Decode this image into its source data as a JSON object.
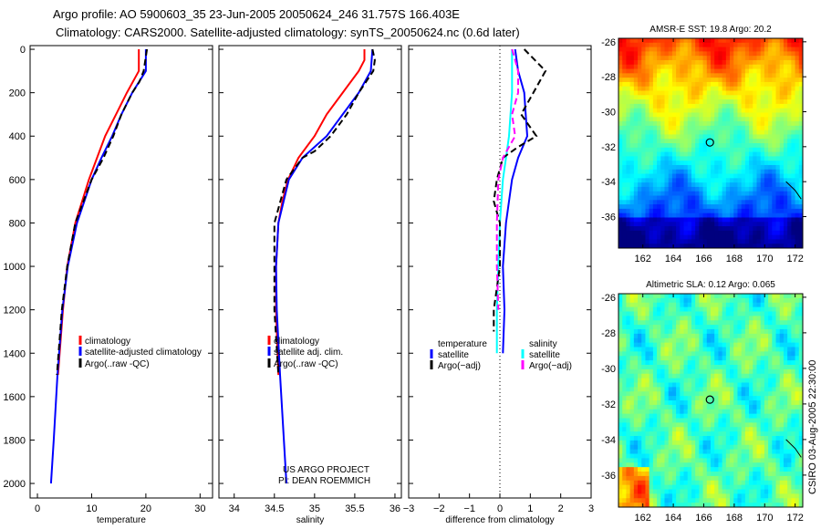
{
  "title_line1": "Argo profile: AO 5900603_35 23-Jun-2005 20050624_246 31.757S 166.403E",
  "title_line2": "Climatology: CARS2000. Satellite-adjusted climatology: synTS_20050624.nc (0.6d later)",
  "credit": "CSIRO 03-Aug-2005 22:30:00",
  "project_line1": "US ARGO PROJECT",
  "project_line2": "PI: DEAN ROEMMICH",
  "colors": {
    "red": "#ff0000",
    "blue": "#0000ff",
    "black": "#000000",
    "cyan": "#00ffff",
    "magenta": "#ff00ff"
  },
  "chart_data": [
    {
      "type": "line",
      "id": "temp",
      "xlabel": "temperature",
      "ylabel": "",
      "xlim": [
        -1.35,
        32.3
      ],
      "ylim": [
        2067,
        -17
      ],
      "xticks": [
        0,
        10,
        20,
        30
      ],
      "yticks": [
        0,
        200,
        400,
        600,
        800,
        1000,
        1200,
        1400,
        1600,
        1800,
        2000
      ],
      "legend": [
        "climatology",
        "satellite-adjusted climatology",
        "Argo(..raw -QC)"
      ],
      "series": [
        {
          "name": "climatology",
          "color": "red",
          "dash": false,
          "depth": [
            0,
            100,
            200,
            300,
            400,
            500,
            600,
            800,
            1000,
            1200,
            1500
          ],
          "value": [
            18.7,
            18.7,
            16.5,
            14.5,
            12.5,
            11,
            9.5,
            7,
            5.5,
            4.7,
            3.8
          ]
        },
        {
          "name": "satellite-adjusted climatology",
          "color": "blue",
          "dash": false,
          "depth": [
            0,
            100,
            200,
            300,
            400,
            500,
            600,
            800,
            1000,
            1200,
            1500,
            1800,
            2000
          ],
          "value": [
            20,
            20,
            17.5,
            15.5,
            13.8,
            11.8,
            10,
            7.3,
            5.6,
            4.6,
            3.7,
            3,
            2.5
          ]
        },
        {
          "name": "Argo(..raw -QC)",
          "color": "black",
          "dash": true,
          "depth": [
            0,
            100,
            150,
            200,
            300,
            400,
            500,
            600,
            700,
            800,
            1000,
            1200,
            1500
          ],
          "value": [
            20.2,
            19.6,
            18.8,
            17.5,
            15.5,
            14,
            12.2,
            10,
            8.5,
            7,
            5.5,
            4.5,
            3.6
          ]
        }
      ]
    },
    {
      "type": "line",
      "id": "sal",
      "xlabel": "salinity",
      "xlim": [
        33.81,
        36.08
      ],
      "ylim": [
        2067,
        -17
      ],
      "xticks": [
        34,
        34.5,
        35,
        35.5,
        36
      ],
      "xticklabels": [
        "34",
        "34.5",
        "35",
        "35.5",
        "36"
      ],
      "legend": [
        "climatology",
        "satellite adj. clim.",
        "Argo(..raw -QC)"
      ],
      "series": [
        {
          "name": "climatology",
          "color": "red",
          "dash": false,
          "depth": [
            0,
            50,
            100,
            200,
            300,
            400,
            500,
            600,
            700,
            800,
            1000,
            1200,
            1500
          ],
          "value": [
            35.62,
            35.62,
            35.55,
            35.35,
            35.15,
            35.0,
            34.8,
            34.67,
            34.6,
            34.55,
            34.52,
            34.52,
            34.55
          ]
        },
        {
          "name": "satellite adj. clim.",
          "color": "blue",
          "dash": false,
          "depth": [
            0,
            100,
            200,
            300,
            400,
            500,
            600,
            800,
            1000,
            1200,
            1500,
            2000
          ],
          "value": [
            35.72,
            35.7,
            35.55,
            35.35,
            35.15,
            34.85,
            34.68,
            34.55,
            34.52,
            34.53,
            34.57,
            34.65
          ]
        },
        {
          "name": "Argo(..raw -QC)",
          "color": "black",
          "dash": true,
          "depth": [
            0,
            50,
            100,
            200,
            300,
            400,
            470,
            500,
            600,
            800,
            1000,
            1200,
            1500
          ],
          "value": [
            35.72,
            35.75,
            35.73,
            35.55,
            35.4,
            35.2,
            35.0,
            34.85,
            34.65,
            34.5,
            34.5,
            34.5,
            34.55
          ]
        }
      ]
    },
    {
      "type": "line",
      "id": "diff",
      "xlabel": "difference from climatology",
      "xlim": [
        -3,
        3
      ],
      "ylim": [
        2067,
        -17
      ],
      "xticks": [
        -3,
        -2,
        -1,
        0,
        1,
        2,
        3
      ],
      "xticklabels": [
        "−3",
        "−2",
        "−1",
        "0",
        "1",
        "2",
        "3"
      ],
      "legend_temp": {
        "header": "temperature",
        "items": [
          "satellite",
          "Argo(−adj)"
        ]
      },
      "legend_sal": {
        "header": "salinity",
        "items": [
          "satellite",
          "Argo(−adj)"
        ]
      },
      "series": [
        {
          "name": "temperature satellite",
          "color": "blue",
          "dash": false,
          "depth": [
            0,
            100,
            200,
            300,
            400,
            500,
            600,
            800,
            1000,
            1200,
            1400
          ],
          "value": [
            0.5,
            0.6,
            0.8,
            0.85,
            0.9,
            0.6,
            0.4,
            0.2,
            0.1,
            0.15,
            0.1
          ]
        },
        {
          "name": "salinity satellite",
          "color": "cyan",
          "dash": false,
          "depth": [
            0,
            200,
            400,
            500,
            600,
            800,
            1000,
            1200,
            1400
          ],
          "value": [
            0.4,
            0.4,
            0.3,
            0.2,
            0.1,
            0,
            -0.05,
            -0.1,
            -0.1
          ]
        },
        {
          "name": "temperature Argo(-adj)",
          "color": "black",
          "dash": true,
          "depth": [
            0,
            100,
            200,
            300,
            400,
            450,
            500,
            600,
            700,
            800,
            1000,
            1200,
            1300
          ],
          "value": [
            0.8,
            1.5,
            1.1,
            0.7,
            1.2,
            0.6,
            0.1,
            -0.1,
            -0.2,
            0,
            0,
            -0.2,
            -0.2
          ]
        },
        {
          "name": "salinity Argo(-adj)",
          "color": "magenta",
          "dash": true,
          "depth": [
            0,
            50,
            100,
            200,
            300,
            400,
            500,
            600,
            800,
            1000,
            1200
          ],
          "value": [
            0.4,
            0.5,
            0.6,
            0.6,
            0.4,
            0.5,
            0.1,
            -0.05,
            -0.1,
            -0.1,
            -0.05
          ]
        }
      ]
    },
    {
      "type": "heatmap",
      "id": "sst",
      "title": "AMSR-E SST: 19.8 Argo: 20.2",
      "xlim": [
        160.4,
        172.5
      ],
      "ylim": [
        -37.8,
        -25.8
      ],
      "xticks": [
        162,
        164,
        166,
        168,
        170,
        172
      ],
      "yticks": [
        -26,
        -28,
        -30,
        -32,
        -34,
        -36
      ],
      "argo_position": [
        166.403,
        -31.757
      ]
    },
    {
      "type": "heatmap",
      "id": "sla",
      "title": "Altimetric SLA: 0.12 Argo: 0.065",
      "xlim": [
        160.4,
        172.5
      ],
      "ylim": [
        -37.8,
        -25.8
      ],
      "xticks": [
        162,
        164,
        166,
        168,
        170,
        172
      ],
      "yticks": [
        -26,
        -28,
        -30,
        -32,
        -34,
        -36
      ],
      "argo_position": [
        166.403,
        -31.757
      ]
    }
  ]
}
